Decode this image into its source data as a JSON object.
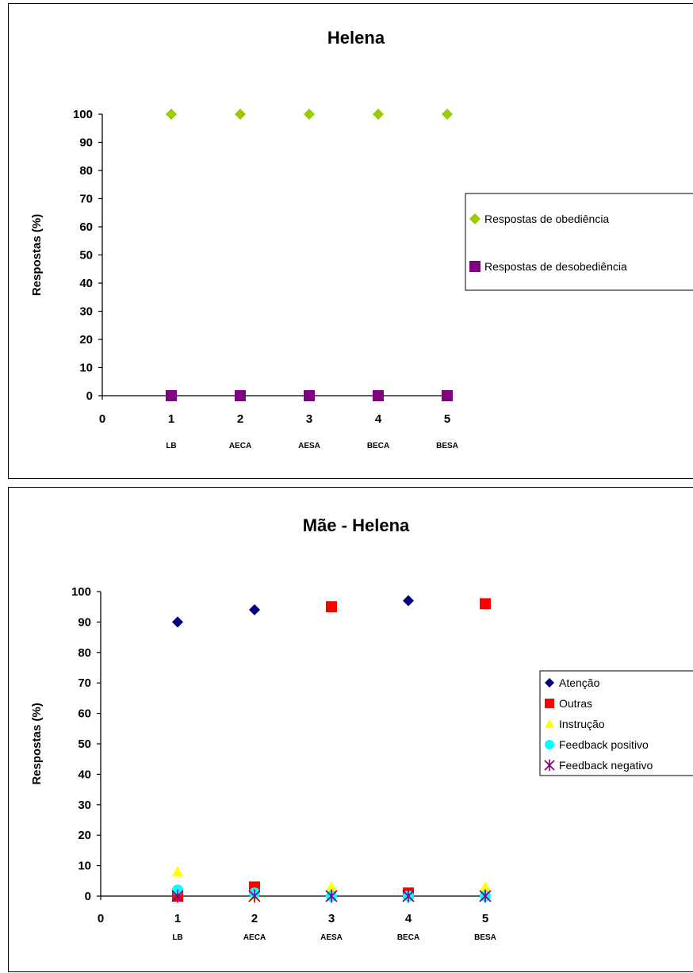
{
  "chart_data": [
    {
      "type": "scatter",
      "title": "Helena",
      "ylabel": "Respostas (%)",
      "xlabel": "",
      "x_ticks": [
        "0",
        "1",
        "2",
        "3",
        "4",
        "5"
      ],
      "y_ticks": [
        "0",
        "10",
        "20",
        "30",
        "40",
        "50",
        "60",
        "70",
        "80",
        "90",
        "100"
      ],
      "categories": [
        "LB",
        "AECA",
        "AESA",
        "BECA",
        "BESA"
      ],
      "x": [
        1,
        2,
        3,
        4,
        5
      ],
      "xlim": [
        0,
        5
      ],
      "ylim": [
        0,
        100
      ],
      "grid": false,
      "legend_position": "right",
      "series": [
        {
          "name": "Respostas de obediência",
          "marker": "diamond",
          "color": "#99cc00",
          "values": [
            100,
            100,
            100,
            100,
            100
          ]
        },
        {
          "name": "Respostas de desobediência",
          "marker": "square",
          "color": "#800080",
          "values": [
            0,
            0,
            0,
            0,
            0
          ]
        }
      ]
    },
    {
      "type": "scatter",
      "title": "Mãe - Helena",
      "ylabel": "Respostas (%)",
      "xlabel": "",
      "x_ticks": [
        "0",
        "1",
        "2",
        "3",
        "4",
        "5"
      ],
      "y_ticks": [
        "0",
        "10",
        "20",
        "30",
        "40",
        "50",
        "60",
        "70",
        "80",
        "90",
        "100"
      ],
      "categories": [
        "LB",
        "AECA",
        "AESA",
        "BECA",
        "BESA"
      ],
      "x": [
        1,
        2,
        3,
        4,
        5
      ],
      "xlim": [
        0,
        5
      ],
      "ylim": [
        0,
        100
      ],
      "grid": false,
      "legend_position": "right",
      "series": [
        {
          "name": "Atenção",
          "marker": "diamond",
          "color": "#000080",
          "values": [
            90,
            94,
            null,
            97,
            null
          ]
        },
        {
          "name": "Outras",
          "marker": "square",
          "color": "#ff0000",
          "values": [
            0,
            3,
            95,
            1,
            96
          ]
        },
        {
          "name": "Instrução",
          "marker": "triangle",
          "color": "#ffff00",
          "values": [
            8,
            0,
            3,
            0,
            3
          ]
        },
        {
          "name": "Feedback positivo",
          "marker": "circle",
          "color": "#00ffff",
          "values": [
            2,
            1,
            0,
            0,
            0
          ]
        },
        {
          "name": "Feedback negativo",
          "marker": "star",
          "color": "#800080",
          "values": [
            0,
            0,
            0,
            0,
            0
          ]
        }
      ]
    }
  ]
}
